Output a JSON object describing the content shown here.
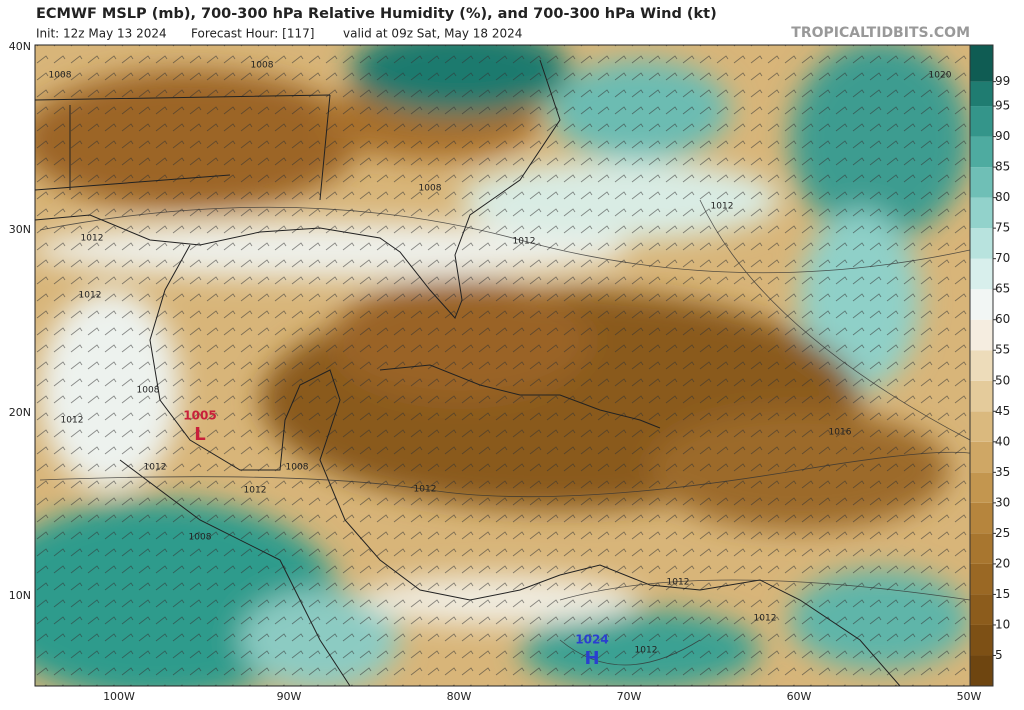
{
  "header": {
    "title": "ECMWF MSLP (mb), 700-300 hPa Relative Humidity (%), and 700-300 hPa Wind (kt)",
    "subtitle": [
      "Init: 12z May 13 2024",
      "Forecast Hour: [117]",
      "valid at 09z Sat, May 18 2024"
    ],
    "credit": "TROPICALTIDBITS.COM"
  },
  "map": {
    "lat_labels": [
      "40N",
      "30N",
      "20N",
      "10N"
    ],
    "lon_labels": [
      "100W",
      "90W",
      "80W",
      "70W",
      "60W",
      "50W"
    ],
    "isobar_labels": [
      1008,
      1008,
      1012,
      1012,
      1008,
      1012,
      1012,
      1008,
      1012,
      1008,
      1008,
      1012,
      1012,
      1012,
      1016,
      1012,
      1012,
      1012,
      1020
    ],
    "centers": [
      {
        "pressure": 1005,
        "symbol": "L",
        "color": "#c8203a"
      },
      {
        "pressure": 1024,
        "symbol": "H",
        "color": "#2a3fd0"
      }
    ]
  },
  "colorbar": {
    "range": [
      0,
      105
    ],
    "ticks": [
      99,
      95,
      90,
      85,
      80,
      75,
      70,
      65,
      60,
      55,
      50,
      45,
      40,
      35,
      30,
      25,
      20,
      15,
      10,
      5
    ],
    "colors": [
      "#6e4510",
      "#7d5015",
      "#8c5c1c",
      "#9a6824",
      "#a8762f",
      "#b6853d",
      "#c3964f",
      "#cfa765",
      "#dab97e",
      "#e4cb9b",
      "#eddcba",
      "#f5ede0",
      "#f2f6f4",
      "#d8efec",
      "#b8e3de",
      "#92d2cb",
      "#6fbfb6",
      "#4eaba0",
      "#34958a",
      "#1f7c71",
      "#0f5c53"
    ]
  }
}
